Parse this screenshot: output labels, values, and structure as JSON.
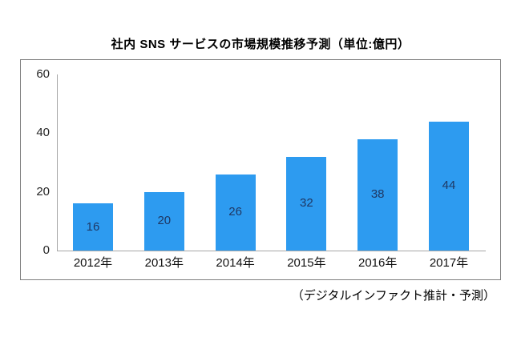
{
  "chart_data": {
    "type": "bar",
    "title": "社内 SNS サービスの市場規模推移予測（単位:億円）",
    "categories": [
      "2012年",
      "2013年",
      "2014年",
      "2015年",
      "2016年",
      "2017年"
    ],
    "values": [
      16,
      20,
      26,
      32,
      38,
      44
    ],
    "unit": "億円",
    "ylim": [
      0,
      60
    ],
    "yticks": [
      0,
      20,
      40,
      60
    ],
    "grid": false,
    "legend": "none",
    "bar_color": "#2d9bf0",
    "value_label_color": "#1f3864",
    "axis_color": "#a6a6a6",
    "frame_border_color": "#7f7f7f",
    "source_note": "（デジタルインファクト推計・予測）"
  }
}
